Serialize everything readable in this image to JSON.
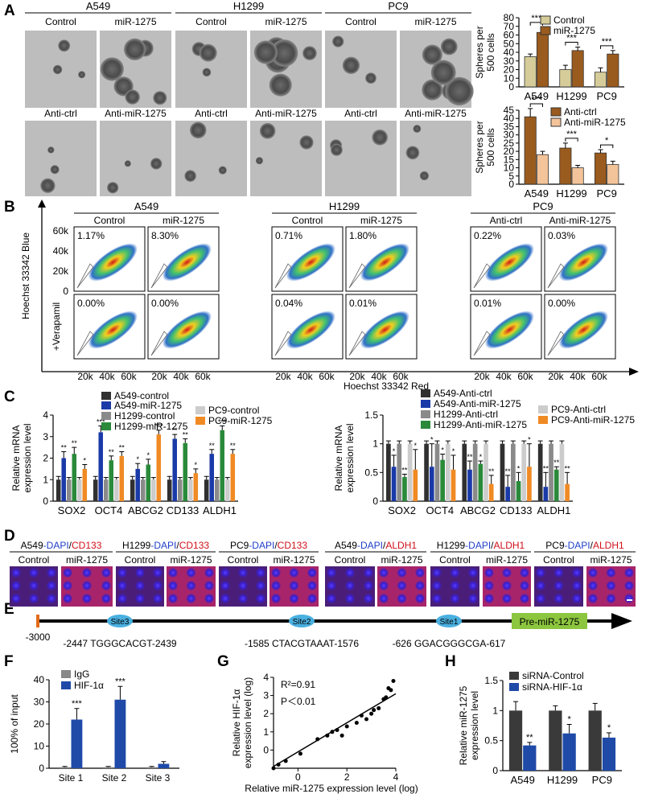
{
  "colors": {
    "control": "#d6cc9a",
    "mir": "#9a5b1e",
    "antictrl": "#9a5b1e",
    "antimir": "#f3c49a",
    "a549c": "#303030",
    "a549m": "#1a3aa8",
    "h1299c": "#8a8a8a",
    "h1299m": "#2a8a3a",
    "pc9c": "#cccccc",
    "pc9m": "#f08a24",
    "igg": "#888888",
    "hif": "#1f4aa8",
    "sictl": "#3a3a3a",
    "sihif": "#1f4aa8",
    "siteblue": "#4ab0e0",
    "premir": "#8cc63f",
    "start": "#e36c1b"
  },
  "panel_labels": {
    "a": "A",
    "b": "B",
    "c": "C",
    "d": "D",
    "e": "E",
    "f": "F",
    "g": "G",
    "h": "H"
  },
  "panelA": {
    "cell_lines": [
      "A549",
      "H1299",
      "PC9"
    ],
    "row1_conditions": [
      "Control",
      "miR-1275",
      "Control",
      "miR-1275",
      "Control",
      "miR-1275"
    ],
    "row2_conditions": [
      "Anti-ctrl",
      "Anti-miR-1275",
      "Anti-ctrl",
      "Anti-miR-1275",
      "Anti-ctrl",
      "Anti-miR-1275"
    ]
  },
  "panelB": {
    "groups": [
      {
        "name": "A549",
        "conds": [
          "Control",
          "miR-1275"
        ],
        "top": [
          "1.17%",
          "8.30%"
        ],
        "bottom": [
          "0.00%",
          "0.00%"
        ]
      },
      {
        "name": "H1299",
        "conds": [
          "Control",
          "miR-1275"
        ],
        "top": [
          "0.71%",
          "1.80%"
        ],
        "bottom": [
          "0.04%",
          "0.01%"
        ]
      },
      {
        "name": "PC9",
        "conds": [
          "Anti-ctrl",
          "Anti-miR-1275"
        ],
        "top": [
          "0.22%",
          "0.03%"
        ],
        "bottom": [
          "0.01%",
          "0.00%"
        ]
      }
    ],
    "y_ticks": [
      "60k",
      "40k",
      "20k",
      "0"
    ],
    "x_ticks": [
      "20k",
      "40k",
      "60k"
    ],
    "ylabel": "Hoechst 33342 Blue",
    "ylabel2": "+Verapamil",
    "xlabel": "Hoechst 33342 Red"
  },
  "panelD": {
    "groups": [
      {
        "line": "A549",
        "slash": "/",
        "marker": "CD133"
      },
      {
        "line": "H1299",
        "slash": "/",
        "marker": "CD133"
      },
      {
        "line": "PC9",
        "slash": "/",
        "marker": "CD133"
      },
      {
        "line": "A549",
        "slash": "/",
        "marker": "ALDH1"
      },
      {
        "line": "H1299",
        "slash": "/",
        "marker": "ALDH1"
      },
      {
        "line": "PC9",
        "slash": "/",
        "marker": "ALDH1"
      }
    ],
    "dapi": "-DAPI",
    "conds": [
      "Control",
      "miR-1275"
    ]
  },
  "panelE": {
    "start": "-3000",
    "sites": [
      {
        "name": "Site3",
        "seq": "-2447 TGGGCACGT-2439"
      },
      {
        "name": "Site2",
        "seq": "-1585 CTACGTAAAT-1576"
      },
      {
        "name": "Site1",
        "seq": "-626 GGACGGGCGA-617"
      }
    ],
    "premir": "Pre-miR-1275"
  },
  "chart_data": [
    {
      "id": "A-top",
      "type": "bar",
      "categories": [
        "A549",
        "H1299",
        "PC9"
      ],
      "series": [
        {
          "name": "Control",
          "values": [
            35,
            20,
            17
          ],
          "err": [
            3,
            5,
            5
          ]
        },
        {
          "name": "miR-1275",
          "values": [
            63,
            42,
            38
          ],
          "err": [
            6,
            4,
            4
          ]
        }
      ],
      "ylabel": "Spheres per 500 cells",
      "ylim": [
        0,
        80
      ],
      "yticks": [
        0,
        10,
        20,
        30,
        40,
        50,
        60,
        70,
        80
      ],
      "sig": [
        "***",
        "***",
        "***"
      ]
    },
    {
      "id": "A-bottom",
      "type": "bar",
      "categories": [
        "A549",
        "H1299",
        "PC9"
      ],
      "series": [
        {
          "name": "Anti-ctrl",
          "values": [
            41,
            22,
            19
          ],
          "err": [
            5,
            3,
            2
          ]
        },
        {
          "name": "Anti-miR-1275",
          "values": [
            18,
            10,
            12
          ],
          "err": [
            2,
            1.5,
            2
          ]
        }
      ],
      "ylabel": "Spheres per 500 cells",
      "ylim": [
        0,
        45
      ],
      "yticks": [
        0,
        5,
        10,
        15,
        20,
        25,
        30,
        35,
        40,
        45
      ],
      "sig": [
        "***",
        "***",
        "*"
      ]
    },
    {
      "id": "C-left",
      "type": "bar",
      "categories": [
        "SOX2",
        "OCT4",
        "ABCG2",
        "CD133",
        "ALDH1"
      ],
      "series": [
        {
          "name": "A549-control",
          "values": [
            1,
            1,
            1,
            1,
            1
          ],
          "err": [
            0.15,
            0.15,
            0.15,
            0.15,
            0.15
          ]
        },
        {
          "name": "A549-miR-1275",
          "values": [
            2.0,
            3.2,
            1.5,
            2.9,
            2.2
          ],
          "err": [
            0.3,
            0.3,
            0.25,
            0.2,
            0.2
          ]
        },
        {
          "name": "H1299-control",
          "values": [
            1,
            1,
            1,
            1,
            1
          ],
          "err": [
            0.1,
            0.1,
            0.1,
            0.1,
            0.1
          ]
        },
        {
          "name": "H1299-miR-1275",
          "values": [
            2.2,
            1.9,
            1.7,
            2.7,
            3.3
          ],
          "err": [
            0.3,
            0.2,
            0.25,
            0.2,
            0.2
          ]
        },
        {
          "name": "PC9-control",
          "values": [
            1,
            1,
            1,
            1,
            1
          ],
          "err": [
            0.1,
            0.1,
            0.1,
            0.1,
            0.1
          ]
        },
        {
          "name": "PC9-miR-1275",
          "values": [
            1.5,
            2.1,
            3.1,
            1.3,
            2.2
          ],
          "err": [
            0.2,
            0.2,
            0.2,
            0.2,
            0.2
          ]
        }
      ],
      "ylabel": "Relative mRNA expression level",
      "ylim": [
        0,
        4
      ],
      "yticks": [
        0,
        1,
        2,
        3,
        4
      ],
      "sig": [
        [
          "**",
          "**",
          "*"
        ],
        [
          "***",
          "**",
          "**"
        ],
        [
          "*",
          "*",
          "***"
        ],
        [
          "**",
          "**",
          "*"
        ],
        [
          "**",
          "***",
          "**"
        ]
      ]
    },
    {
      "id": "C-right",
      "type": "bar",
      "categories": [
        "SOX2",
        "OCT4",
        "ABCG2",
        "CD133",
        "ALDH1"
      ],
      "series": [
        {
          "name": "A549-Anti-ctrl",
          "values": [
            1,
            1,
            1,
            1,
            1
          ],
          "err": [
            0.05,
            0.05,
            0.05,
            0.05,
            0.05
          ]
        },
        {
          "name": "A549-Anti-miR-1275",
          "values": [
            0.6,
            0.6,
            0.55,
            0.25,
            0.25
          ],
          "err": [
            0.2,
            0.4,
            0.15,
            0.2,
            0.25
          ]
        },
        {
          "name": "H1299-Anti-ctrl",
          "values": [
            1,
            1,
            1,
            1,
            1
          ],
          "err": [
            0.05,
            0.05,
            0.05,
            0.05,
            0.05
          ]
        },
        {
          "name": "H1299-Anti-miR-1275",
          "values": [
            0.42,
            0.72,
            0.65,
            0.35,
            0.55
          ],
          "err": [
            0.05,
            0.1,
            0.05,
            0.15,
            0.05
          ]
        },
        {
          "name": "PC9-Anti-ctrl",
          "values": [
            1,
            1,
            1,
            1,
            1
          ],
          "err": [
            0.05,
            0.05,
            0.05,
            0.05,
            0.05
          ]
        },
        {
          "name": "PC9-Anti-miR-1275",
          "values": [
            0.55,
            0.55,
            0.3,
            0.6,
            0.3
          ],
          "err": [
            0.35,
            0.25,
            0.15,
            0.4,
            0.2
          ]
        }
      ],
      "ylabel": "Relative mRNA expression level",
      "ylim": [
        0,
        1.5
      ],
      "yticks": [
        0,
        0.5,
        1,
        1.5
      ],
      "sig": [
        [
          "*",
          "**",
          "*"
        ],
        [
          "*",
          "*",
          "*"
        ],
        [
          "**",
          "*",
          "**"
        ],
        [
          "**",
          "*",
          "*"
        ],
        [
          "**",
          "**",
          "**"
        ]
      ]
    },
    {
      "id": "F",
      "type": "bar",
      "categories": [
        "Site 1",
        "Site 2",
        "Site 3"
      ],
      "series": [
        {
          "name": "IgG",
          "values": [
            0.5,
            0.5,
            0.5
          ],
          "err": [
            0.3,
            0.3,
            0.3
          ]
        },
        {
          "name": "HIF-1α",
          "values": [
            22,
            31,
            2
          ],
          "err": [
            5,
            6,
            1
          ]
        }
      ],
      "ylabel": "100% of input",
      "ylim": [
        0,
        40
      ],
      "yticks": [
        0,
        10,
        20,
        30,
        40
      ],
      "sig": [
        "***",
        "***",
        ""
      ]
    },
    {
      "id": "G",
      "type": "scatter",
      "x": [
        -1,
        -0.8,
        -0.5,
        0.1,
        0.8,
        1.2,
        1.4,
        1.6,
        1.8,
        2.0,
        2.4,
        2.6,
        2.8,
        3.0,
        3.1,
        3.3,
        3.5,
        3.6,
        3.7,
        3.8,
        3.9
      ],
      "y": [
        -1,
        -0.8,
        -0.6,
        -0.2,
        0.6,
        0.8,
        1.0,
        1.1,
        0.8,
        1.3,
        1.5,
        1.9,
        1.7,
        2.0,
        2.2,
        2.3,
        2.8,
        2.9,
        3.4,
        3.3,
        3.8
      ],
      "fit": {
        "x": [
          -1,
          4
        ],
        "y": [
          -0.9,
          3.1
        ]
      },
      "xlabel": "Relative miR-1275 expression level (log)",
      "ylabel": "Relative HIF-1α expression level (log)",
      "xlim": [
        -1,
        4
      ],
      "ylim": [
        -1,
        4
      ],
      "xticks": [
        0,
        2,
        4
      ],
      "yticks": [
        0,
        1,
        2,
        3,
        4
      ],
      "annot": [
        "R²=0.91",
        "P＜0.01"
      ]
    },
    {
      "id": "H",
      "type": "bar",
      "categories": [
        "A549",
        "H1299",
        "PC9"
      ],
      "series": [
        {
          "name": "siRNA-Control",
          "values": [
            1,
            1,
            1
          ],
          "err": [
            0.15,
            0.08,
            0.12
          ]
        },
        {
          "name": "siRNA-HIF-1α",
          "values": [
            0.42,
            0.62,
            0.55
          ],
          "err": [
            0.05,
            0.15,
            0.08
          ]
        }
      ],
      "ylabel": "Relative miR-1275 expression level",
      "ylim": [
        0,
        1.5
      ],
      "yticks": [
        0,
        0.5,
        1,
        1.5
      ],
      "sig": [
        "**",
        "*",
        "*"
      ]
    }
  ]
}
